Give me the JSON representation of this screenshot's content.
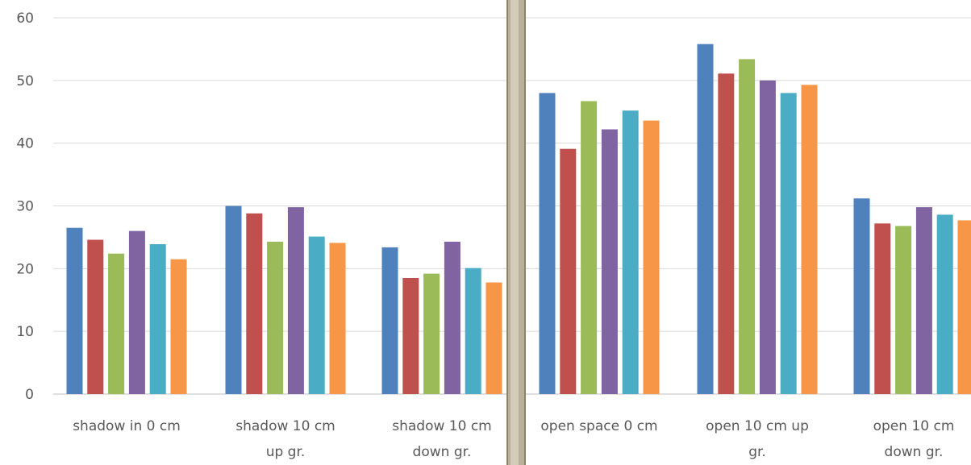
{
  "chart_data": {
    "type": "bar",
    "title": "",
    "xlabel": "",
    "ylabel": "",
    "ylim": [
      0,
      60
    ],
    "yticks": [
      0,
      10,
      20,
      30,
      40,
      50,
      60
    ],
    "grid": true,
    "categories": [
      [
        "shadow in 0 cm"
      ],
      [
        "shadow 10 cm",
        "up gr."
      ],
      [
        "shadow 10 cm",
        "down gr."
      ],
      [
        "open space 0 cm"
      ],
      [
        "open 10 cm up",
        "gr."
      ],
      [
        "open 10 cm",
        "down gr."
      ]
    ],
    "series": [
      {
        "color": "#4F81BD",
        "values": [
          26.5,
          30.0,
          23.4,
          48.0,
          55.8,
          31.2
        ]
      },
      {
        "color": "#C0504D",
        "values": [
          24.6,
          28.8,
          18.5,
          39.1,
          51.1,
          27.2
        ]
      },
      {
        "color": "#9BBB59",
        "values": [
          22.4,
          24.3,
          19.2,
          46.7,
          53.4,
          26.8
        ]
      },
      {
        "color": "#8064A2",
        "values": [
          26.0,
          29.8,
          24.3,
          42.2,
          50.0,
          29.8
        ]
      },
      {
        "color": "#4BACC6",
        "values": [
          23.9,
          25.1,
          20.1,
          45.2,
          48.0,
          28.6
        ]
      },
      {
        "color": "#F79646",
        "values": [
          21.5,
          24.1,
          17.8,
          43.6,
          49.3,
          27.7
        ]
      }
    ]
  },
  "divider": {
    "color": "#B8B098"
  }
}
